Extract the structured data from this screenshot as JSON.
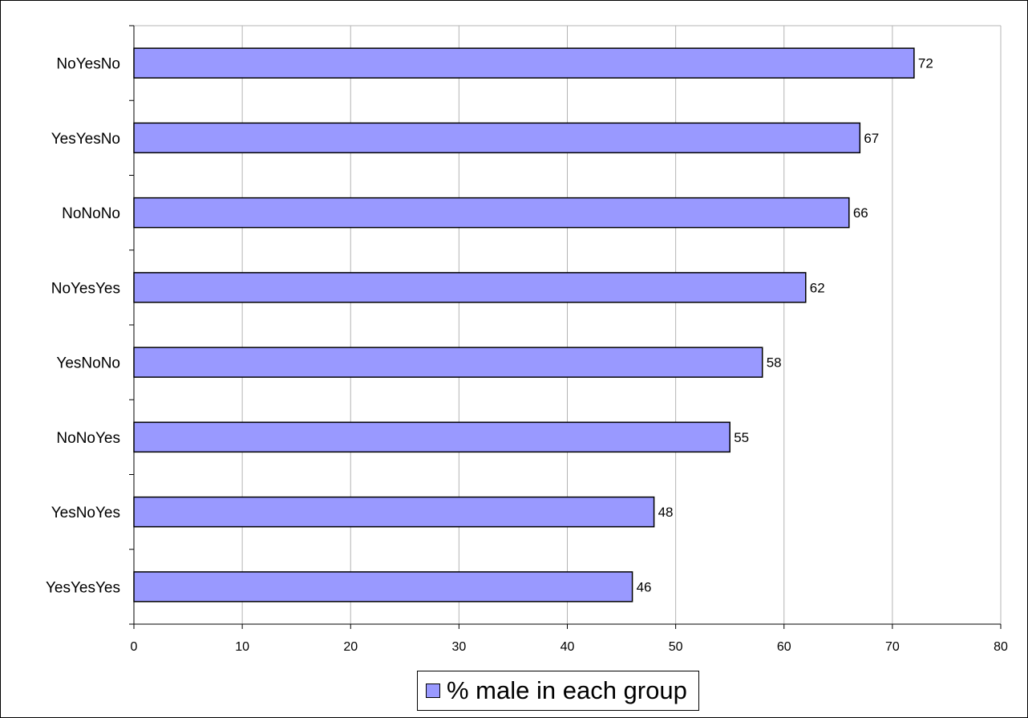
{
  "chart_data": {
    "type": "bar",
    "orientation": "horizontal",
    "categories": [
      "NoYesNo",
      "YesYesNo",
      "NoNoNo",
      "NoYesYes",
      "YesNoNo",
      "NoNoYes",
      "YesNoYes",
      "YesYesYes"
    ],
    "series": [
      {
        "name": "% male in each group",
        "values": [
          72,
          67,
          66,
          62,
          58,
          55,
          48,
          46
        ]
      }
    ],
    "data_labels": [
      "72",
      "67",
      "66",
      "62",
      "58",
      "55",
      "48",
      "46"
    ],
    "x_ticks": [
      "0",
      "10",
      "20",
      "30",
      "40",
      "50",
      "60",
      "70",
      "80"
    ],
    "xlim": [
      0,
      80
    ],
    "grid": "vertical",
    "legend_position": "bottom",
    "colors": {
      "bar_fill": "#9999ff",
      "bar_stroke": "#000000",
      "grid": "#b4b4b4"
    }
  },
  "legend": {
    "label": "% male in each group"
  }
}
